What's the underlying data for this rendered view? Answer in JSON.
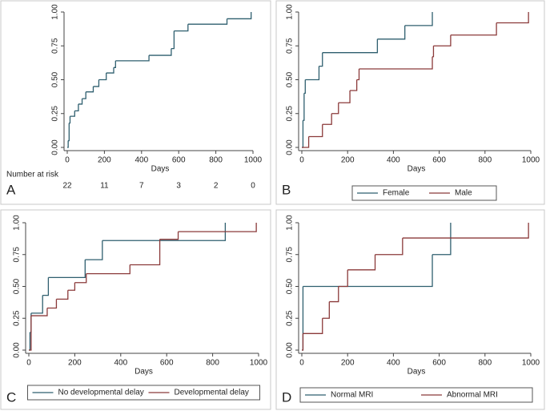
{
  "chart_data": [
    {
      "type": "step",
      "panel": "A",
      "xlabel": "Days",
      "xlim": [
        0,
        1000
      ],
      "xticks": [
        0,
        200,
        400,
        600,
        800,
        1000
      ],
      "ylim": [
        0,
        1
      ],
      "yticks": [
        {
          "value": 0,
          "label": "0.00"
        },
        {
          "value": 0.25,
          "label": "0.25"
        },
        {
          "value": 0.5,
          "label": "0.50"
        },
        {
          "value": 0.75,
          "label": "0.75"
        },
        {
          "value": 1,
          "label": "1.00"
        }
      ],
      "series": [
        {
          "color": "#2f5f6f",
          "x": [
            0,
            5,
            10,
            15,
            40,
            60,
            80,
            100,
            140,
            170,
            210,
            250,
            260,
            440,
            560,
            575,
            650,
            860,
            990
          ],
          "values": [
            0,
            0.05,
            0.18,
            0.23,
            0.27,
            0.32,
            0.36,
            0.41,
            0.45,
            0.5,
            0.55,
            0.59,
            0.64,
            0.68,
            0.73,
            0.86,
            0.91,
            0.95,
            1.0
          ]
        }
      ],
      "risk_table": {
        "label": "Number at risk",
        "values": [
          22,
          11,
          7,
          3,
          2,
          0
        ]
      }
    },
    {
      "type": "step",
      "panel": "B",
      "xlabel": "Days",
      "xlim": [
        0,
        1000
      ],
      "xticks": [
        0,
        200,
        400,
        600,
        800,
        1000
      ],
      "ylim": [
        0,
        1
      ],
      "yticks": [
        {
          "value": 0,
          "label": "0.00"
        },
        {
          "value": 0.25,
          "label": "0.25"
        },
        {
          "value": 0.5,
          "label": "0.50"
        },
        {
          "value": 0.75,
          "label": "0.75"
        },
        {
          "value": 1,
          "label": "1.00"
        }
      ],
      "series": [
        {
          "name": "Female",
          "color": "#2f5f6f",
          "x": [
            0,
            5,
            10,
            15,
            75,
            90,
            330,
            450,
            570
          ],
          "values": [
            0,
            0.2,
            0.4,
            0.5,
            0.6,
            0.7,
            0.8,
            0.9,
            1.0
          ]
        },
        {
          "name": "Male",
          "color": "#8b3a3a",
          "x": [
            0,
            30,
            90,
            130,
            160,
            210,
            240,
            250,
            570,
            575,
            650,
            850,
            990
          ],
          "values": [
            0,
            0.08,
            0.17,
            0.25,
            0.33,
            0.42,
            0.5,
            0.58,
            0.67,
            0.75,
            0.83,
            0.92,
            1.0
          ]
        }
      ]
    },
    {
      "type": "step",
      "panel": "C",
      "xlabel": "Days",
      "xlim": [
        0,
        1000
      ],
      "xticks": [
        0,
        200,
        400,
        600,
        800,
        1000
      ],
      "ylim": [
        0,
        1
      ],
      "yticks": [
        {
          "value": 0,
          "label": "0.00"
        },
        {
          "value": 0.25,
          "label": "0.25"
        },
        {
          "value": 0.5,
          "label": "0.50"
        },
        {
          "value": 0.75,
          "label": "0.75"
        },
        {
          "value": 1,
          "label": "1.00"
        }
      ],
      "series": [
        {
          "name": "No developmental delay",
          "color": "#2f5f6f",
          "x": [
            0,
            5,
            10,
            60,
            85,
            245,
            320,
            855
          ],
          "values": [
            0,
            0.14,
            0.29,
            0.43,
            0.57,
            0.71,
            0.86,
            1.0
          ]
        },
        {
          "name": "Developmental delay",
          "color": "#8b3a3a",
          "x": [
            0,
            10,
            80,
            120,
            170,
            200,
            250,
            440,
            570,
            650,
            990
          ],
          "values": [
            0,
            0.27,
            0.33,
            0.4,
            0.47,
            0.53,
            0.6,
            0.67,
            0.87,
            0.93,
            1.0
          ]
        }
      ]
    },
    {
      "type": "step",
      "panel": "D",
      "xlabel": "Days",
      "xlim": [
        0,
        1000
      ],
      "xticks": [
        0,
        200,
        400,
        600,
        800,
        1000
      ],
      "ylim": [
        0,
        1
      ],
      "yticks": [
        {
          "value": 0,
          "label": "0.00"
        },
        {
          "value": 0.25,
          "label": "0.25"
        },
        {
          "value": 0.5,
          "label": "0.50"
        },
        {
          "value": 0.75,
          "label": "0.75"
        },
        {
          "value": 1,
          "label": "1.00"
        }
      ],
      "series": [
        {
          "name": "Normal MRI",
          "color": "#2f5f6f",
          "x": [
            0,
            5,
            570,
            650
          ],
          "values": [
            0,
            0.5,
            0.75,
            1.0
          ]
        },
        {
          "name": "Abnormal MRI",
          "color": "#8b3a3a",
          "x": [
            0,
            5,
            90,
            120,
            160,
            200,
            320,
            440,
            990
          ],
          "values": [
            0,
            0.13,
            0.25,
            0.38,
            0.5,
            0.63,
            0.75,
            0.88,
            1.0
          ]
        }
      ]
    }
  ]
}
